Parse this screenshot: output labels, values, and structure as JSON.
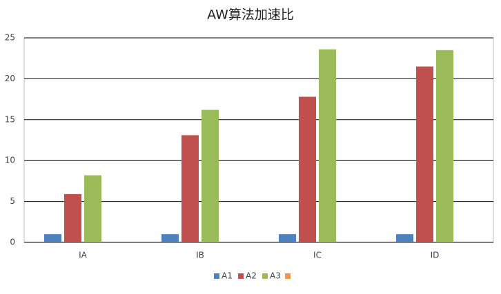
{
  "chart_data": {
    "type": "bar",
    "title": "AW算法加速比",
    "categories": [
      "IA",
      "IB",
      "IC",
      "ID"
    ],
    "series": [
      {
        "name": "A1",
        "color": "#4f81bd",
        "values": [
          1,
          1,
          1,
          1
        ]
      },
      {
        "name": "A2",
        "color": "#c0504d",
        "values": [
          5.9,
          13.1,
          17.8,
          21.5
        ]
      },
      {
        "name": "A3",
        "color": "#9bbb59",
        "values": [
          8.2,
          16.2,
          23.6,
          23.5
        ]
      }
    ],
    "ylim": [
      0,
      25
    ],
    "yticks": [
      0,
      5,
      10,
      15,
      20,
      25
    ],
    "grid": true,
    "legend": "bottom"
  }
}
